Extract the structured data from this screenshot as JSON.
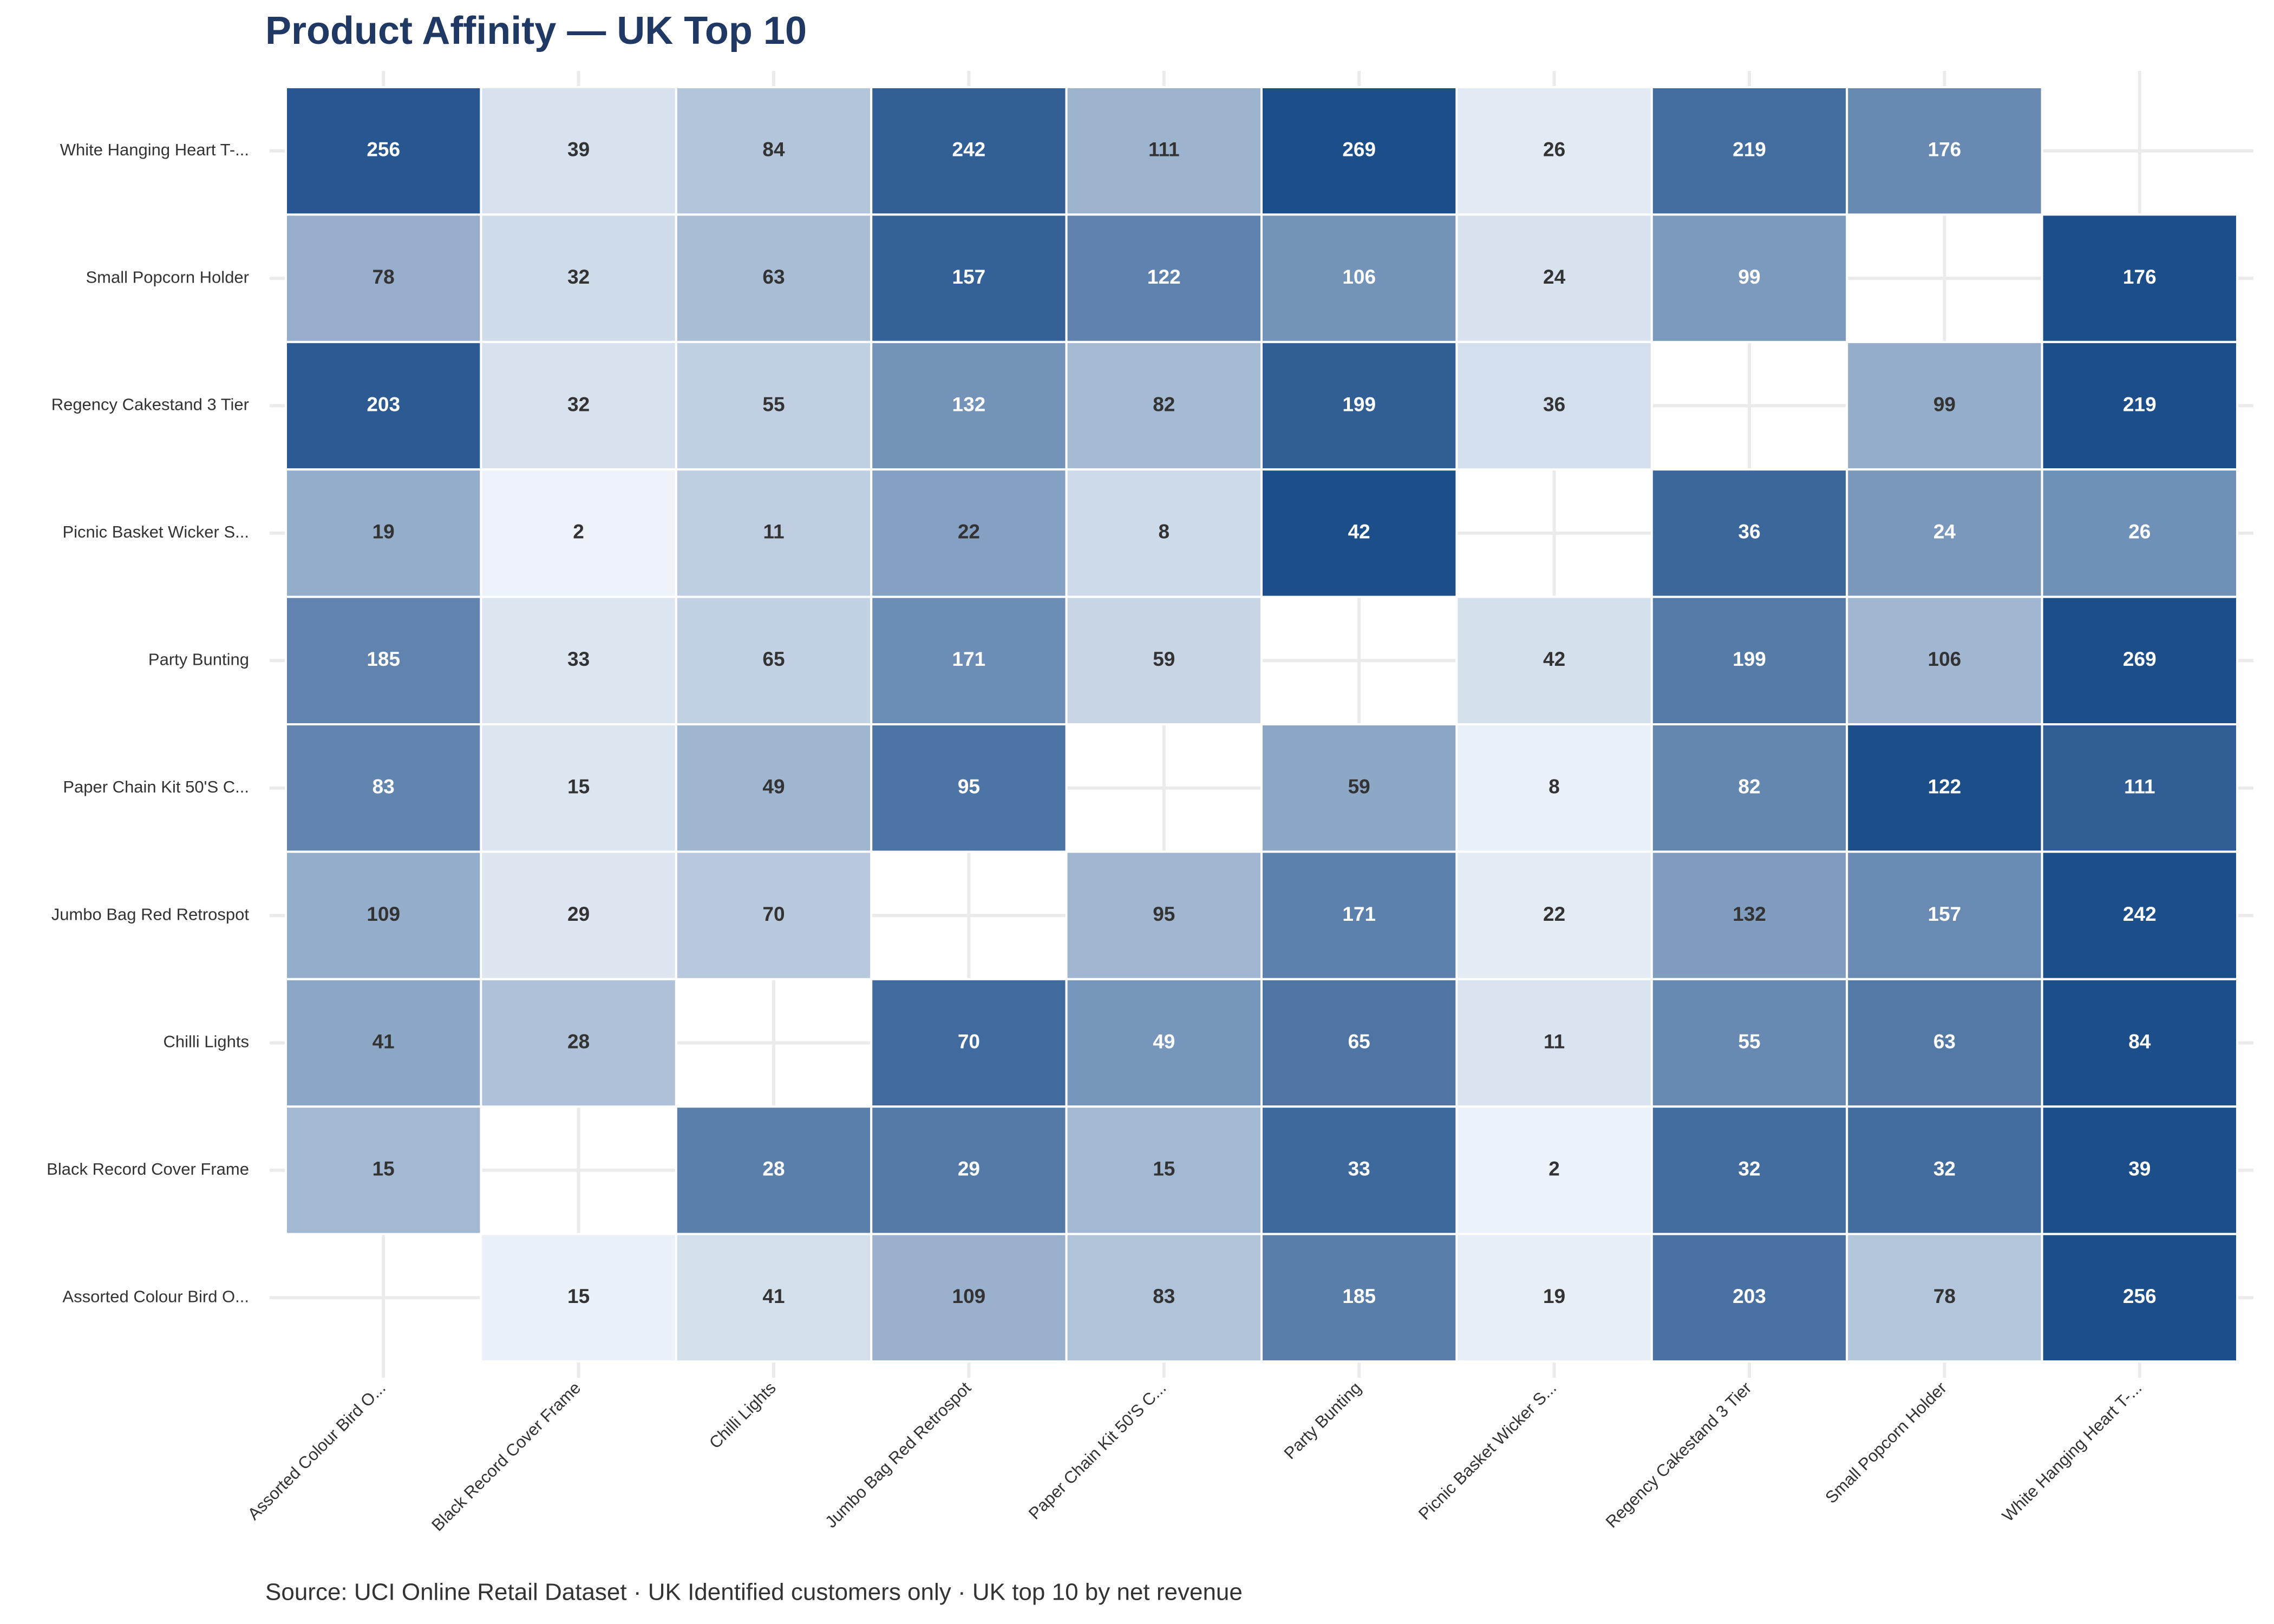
{
  "chart_data": {
    "type": "heatmap",
    "title": "Product Affinity — UK Top 10",
    "source": "Source: UCI Online Retail Dataset · UK Identified customers only · UK top 10 by net revenue",
    "x_categories": [
      "Assorted Colour Bird O...",
      "Black Record Cover Frame",
      "Chilli Lights",
      "Jumbo Bag Red Retrospot",
      "Paper Chain Kit 50'S C...",
      "Party Bunting",
      "Picnic Basket Wicker S...",
      "Regency Cakestand 3 Tier",
      "Small Popcorn Holder",
      "White Hanging Heart T-..."
    ],
    "y_categories": [
      "White Hanging Heart T-...",
      "Small Popcorn Holder",
      "Regency Cakestand 3 Tier",
      "Picnic Basket Wicker S...",
      "Party Bunting",
      "Paper Chain Kit 50'S C...",
      "Jumbo Bag Red Retrospot",
      "Chilli Lights",
      "Black Record Cover Frame",
      "Assorted Colour Bird O..."
    ],
    "values": [
      [
        256,
        39,
        84,
        242,
        111,
        269,
        26,
        219,
        176,
        null
      ],
      [
        78,
        32,
        63,
        157,
        122,
        106,
        24,
        99,
        null,
        176
      ],
      [
        203,
        32,
        55,
        132,
        82,
        199,
        36,
        null,
        99,
        219
      ],
      [
        19,
        2,
        11,
        22,
        8,
        42,
        null,
        36,
        24,
        26
      ],
      [
        185,
        33,
        65,
        171,
        59,
        null,
        42,
        199,
        106,
        269
      ],
      [
        83,
        15,
        49,
        95,
        null,
        59,
        8,
        82,
        122,
        111
      ],
      [
        109,
        29,
        70,
        null,
        95,
        171,
        22,
        132,
        157,
        242
      ],
      [
        41,
        28,
        null,
        70,
        49,
        65,
        11,
        55,
        63,
        84
      ],
      [
        15,
        null,
        28,
        29,
        15,
        33,
        2,
        32,
        32,
        39
      ],
      [
        null,
        15,
        41,
        109,
        83,
        185,
        19,
        203,
        78,
        256
      ]
    ],
    "color_scale": [
      "#f7fbff",
      "#1c4e8a"
    ],
    "normalize": "row",
    "grid": true
  }
}
